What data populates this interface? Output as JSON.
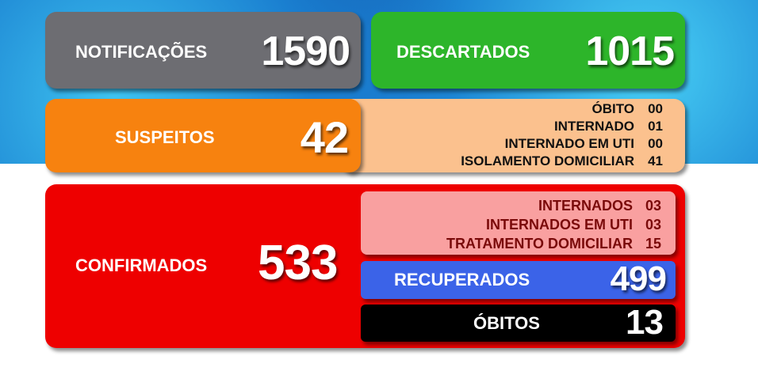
{
  "notificacoes": {
    "label": "NOTIFICAÇÕES",
    "value": "1590",
    "color": "#6d6d72"
  },
  "descartados": {
    "label": "DESCARTADOS",
    "value": "1015",
    "color": "#2db52a"
  },
  "suspeitos": {
    "label": "SUSPEITOS",
    "value": "42",
    "color": "#f7820f",
    "details": [
      {
        "label": "ÓBITO",
        "value": "00"
      },
      {
        "label": "INTERNADO",
        "value": "01"
      },
      {
        "label": "INTERNADO EM UTI",
        "value": "00"
      },
      {
        "label": "ISOLAMENTO DOMICILIAR",
        "value": "41"
      }
    ]
  },
  "confirmados": {
    "label": "CONFIRMADOS",
    "value": "533",
    "color": "#ee0000",
    "details": [
      {
        "label": "INTERNADOS",
        "value": "03"
      },
      {
        "label": "INTERNADOS EM UTI",
        "value": "03"
      },
      {
        "label": "TRATAMENTO DOMICILIAR",
        "value": "15"
      }
    ],
    "recuperados": {
      "label": "RECUPERADOS",
      "value": "499",
      "color": "#3b63e8"
    },
    "obitos": {
      "label": "ÓBITOS",
      "value": "13",
      "color": "#000000"
    }
  }
}
